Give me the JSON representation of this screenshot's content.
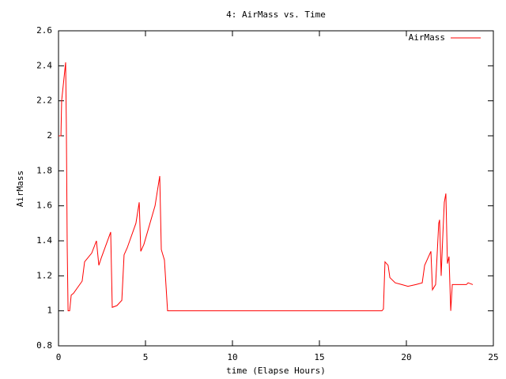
{
  "chart_data": {
    "type": "line",
    "title": "4: AirMass vs. Time",
    "xlabel": "time (Elapse Hours)",
    "ylabel": "AirMass",
    "x": [
      0,
      0.14,
      0.18,
      0.41,
      0.45,
      0.5,
      0.55,
      0.64,
      0.73,
      0.86,
      1.36,
      1.5,
      1.91,
      2.18,
      2.32,
      2.45,
      3.0,
      3.09,
      3.36,
      3.64,
      3.77,
      3.95,
      4.45,
      4.64,
      4.73,
      4.91,
      5.55,
      5.82,
      5.91,
      6.09,
      6.27,
      18.45,
      18.59,
      18.68,
      18.77,
      18.95,
      19.05,
      19.36,
      19.73,
      20.09,
      20.55,
      20.91,
      21.05,
      21.41,
      21.5,
      21.68,
      21.86,
      21.91,
      22.0,
      22.09,
      22.18,
      22.27,
      22.36,
      22.45,
      22.55,
      22.64,
      23.45,
      23.55,
      23.82
    ],
    "series": [
      {
        "name": "AirMass",
        "color": "#ff0000",
        "values": [
          2.0,
          2.0,
          2.2,
          2.42,
          2.07,
          1.37,
          1.0,
          1.0,
          1.09,
          1.1,
          1.17,
          1.28,
          1.33,
          1.4,
          1.26,
          1.3,
          1.45,
          1.02,
          1.03,
          1.06,
          1.32,
          1.36,
          1.5,
          1.62,
          1.34,
          1.38,
          1.6,
          1.77,
          1.35,
          1.29,
          1.0,
          1.0,
          1.0,
          1.01,
          1.28,
          1.26,
          1.19,
          1.16,
          1.15,
          1.14,
          1.15,
          1.16,
          1.26,
          1.34,
          1.12,
          1.15,
          1.5,
          1.52,
          1.2,
          1.42,
          1.62,
          1.67,
          1.27,
          1.31,
          1.0,
          1.15,
          1.15,
          1.16,
          1.15
        ]
      }
    ],
    "xlim": [
      0,
      25
    ],
    "xticks": [
      0,
      5,
      10,
      15,
      20,
      25
    ],
    "ylim": [
      0.8,
      2.6
    ],
    "yticks": [
      0.8,
      1,
      1.2,
      1.4,
      1.6,
      1.8,
      2,
      2.2,
      2.4,
      2.6
    ],
    "grid": false,
    "legend": "top-right"
  }
}
